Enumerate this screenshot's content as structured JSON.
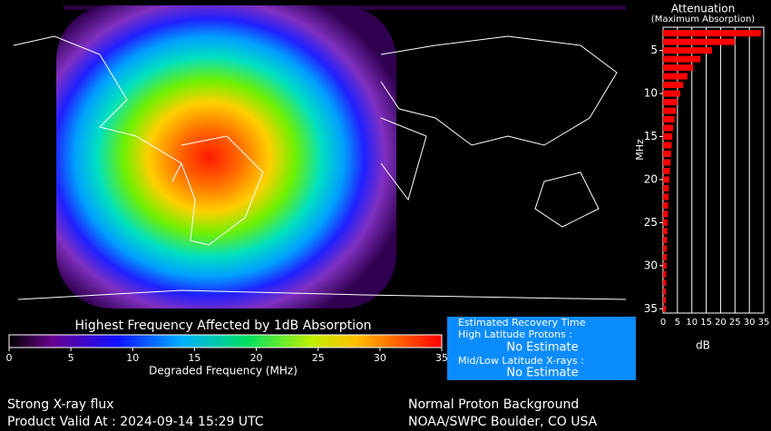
{
  "colorbar": {
    "title": "Highest Frequency Affected by 1dB Absorption",
    "xlabel": "Degraded Frequency (MHz)",
    "ticks": [
      0,
      5,
      10,
      15,
      20,
      25,
      30,
      35
    ]
  },
  "attenuation": {
    "type": "bar",
    "title": "Attenuation",
    "subtitle": "(Maximum Absorption)",
    "ylabel": "MHz",
    "xlabel": "dB",
    "color": "#ff0000",
    "frequencies": [
      3,
      4,
      5,
      6,
      7,
      8,
      9,
      10,
      11,
      12,
      13,
      14,
      15,
      16,
      17,
      18,
      19,
      20,
      21,
      22,
      23,
      24,
      25,
      26,
      27,
      28,
      29,
      30,
      31,
      32,
      33,
      34,
      35
    ],
    "values": [
      34,
      25,
      17,
      13,
      10.5,
      8.5,
      7,
      6,
      5,
      4.5,
      4,
      3.5,
      3.2,
      3,
      2.8,
      2.6,
      2.4,
      2.2,
      2,
      1.9,
      1.8,
      1.7,
      1.6,
      1.5,
      1.4,
      1.3,
      1.3,
      1.2,
      1.1,
      1.1,
      1,
      1,
      1
    ],
    "xlim": [
      0,
      35
    ],
    "xticks": [
      0,
      5,
      10,
      15,
      20,
      25,
      30,
      35
    ],
    "ylim": [
      2.3,
      35.5
    ],
    "yticks": [
      5,
      10,
      15,
      20,
      25,
      30,
      35
    ],
    "grid": true
  },
  "recovery": {
    "title": "Estimated Recovery Time",
    "lines": [
      "High Latitude Protons :",
      "No Estimate",
      "Mid/Low Latitude X-rays :",
      "No Estimate"
    ]
  },
  "footer": {
    "left": [
      "Strong X-ray flux",
      "Product Valid At : 2024-09-14 15:29 UTC"
    ],
    "right": [
      "Normal Proton Background",
      "NOAA/SWPC Boulder, CO USA"
    ]
  }
}
